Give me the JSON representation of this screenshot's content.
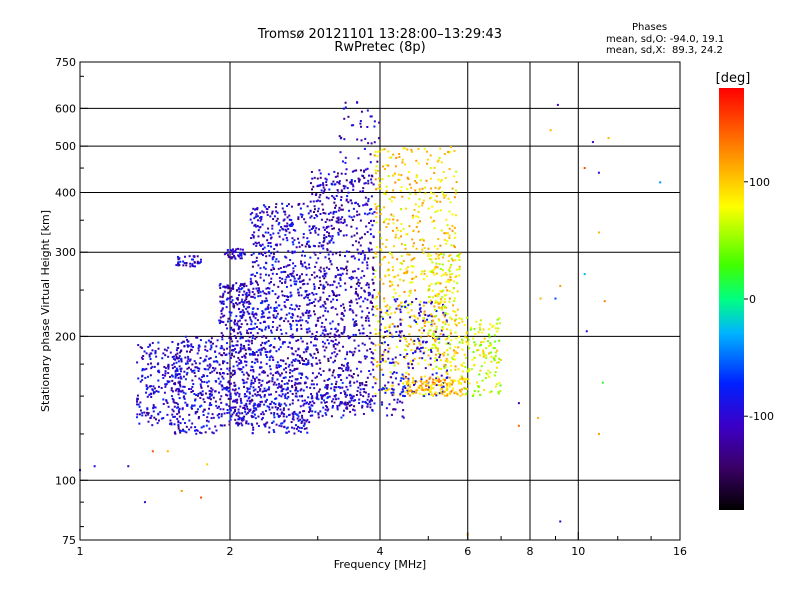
{
  "header": {
    "title_line1": "Tromsø 20121101 13:28:00–13:29:43",
    "title_line2": "RwPretec (8p)"
  },
  "stats": {
    "heading": "Phases",
    "line_o": "mean, sd,O: -94.0, 19.1",
    "line_x": "mean, sd,X:  89.3, 24.2"
  },
  "colorbar": {
    "unit_label": "[deg]",
    "range": [
      -180,
      180
    ],
    "ticks": [
      {
        "value": 100,
        "label": "100"
      },
      {
        "value": 0,
        "label": "0"
      },
      {
        "value": -100,
        "label": "-100"
      }
    ],
    "colormap": "rainbow (black-purple-blue-cyan-green-yellow-red)"
  },
  "chart_data": {
    "type": "scatter",
    "title": "Tromsø 20121101 13:28:00–13:29:43",
    "subtitle": "RwPretec (8p)",
    "xlabel": "Frequency [MHz]",
    "ylabel": "Stationary phase Virtual Height [km]",
    "x_scale": "log",
    "y_scale": "log",
    "xlim": [
      1,
      16
    ],
    "ylim": [
      75,
      750
    ],
    "xticks": [
      1,
      2,
      4,
      6,
      8,
      10,
      16
    ],
    "yticks": [
      75,
      100,
      200,
      300,
      400,
      500,
      600,
      750
    ],
    "x_gridlines": [
      2,
      4,
      6,
      8,
      10
    ],
    "y_gridlines": [
      100,
      200,
      300,
      400,
      500,
      600
    ],
    "color_variable": "phase [deg]",
    "clusters": [
      {
        "f": [
          1.3,
          1.6
        ],
        "h": [
          130,
          195
        ],
        "phase": -100,
        "n": 220
      },
      {
        "f": [
          1.55,
          1.9
        ],
        "h": [
          125,
          200
        ],
        "phase": -100,
        "n": 280
      },
      {
        "f": [
          1.55,
          1.75
        ],
        "h": [
          280,
          295
        ],
        "phase": -100,
        "n": 40
      },
      {
        "f": [
          1.9,
          2.2
        ],
        "h": [
          130,
          260
        ],
        "phase": -105,
        "n": 420
      },
      {
        "f": [
          1.95,
          2.15
        ],
        "h": [
          290,
          305
        ],
        "phase": -105,
        "n": 40
      },
      {
        "f": [
          2.2,
          2.9
        ],
        "h": [
          125,
          380
        ],
        "phase": -100,
        "n": 900
      },
      {
        "f": [
          2.9,
          3.9
        ],
        "h": [
          140,
          450
        ],
        "phase": -110,
        "n": 800
      },
      {
        "f": [
          3.3,
          4.0
        ],
        "h": [
          460,
          620
        ],
        "phase": -110,
        "n": 40
      },
      {
        "f": [
          3.9,
          5.7
        ],
        "h": [
          150,
          500
        ],
        "phase": 95,
        "n": 600
      },
      {
        "f": [
          4.0,
          5.5
        ],
        "h": [
          150,
          240
        ],
        "phase": -100,
        "n": 180
      },
      {
        "f": [
          5.0,
          5.8
        ],
        "h": [
          170,
          300
        ],
        "phase": 80,
        "n": 160
      },
      {
        "f": [
          4.5,
          6.0
        ],
        "h": [
          150,
          165
        ],
        "phase": 110,
        "n": 120
      },
      {
        "f": [
          5.8,
          7.0
        ],
        "h": [
          150,
          220
        ],
        "phase": 70,
        "n": 150
      },
      {
        "f": [
          2.0,
          4.5
        ],
        "h": [
          135,
          160
        ],
        "phase": -95,
        "n": 200
      }
    ],
    "isolated_points": [
      {
        "x": 1.0,
        "y": 105,
        "phase": -110
      },
      {
        "x": 1.07,
        "y": 107,
        "phase": -100
      },
      {
        "x": 1.25,
        "y": 107,
        "phase": -110
      },
      {
        "x": 1.35,
        "y": 90,
        "phase": -100
      },
      {
        "x": 1.4,
        "y": 115,
        "phase": 150
      },
      {
        "x": 1.5,
        "y": 115,
        "phase": 110
      },
      {
        "x": 1.6,
        "y": 95,
        "phase": 120
      },
      {
        "x": 1.75,
        "y": 92,
        "phase": 150
      },
      {
        "x": 1.8,
        "y": 108,
        "phase": 100
      },
      {
        "x": 6.0,
        "y": 77,
        "phase": 130
      },
      {
        "x": 9.2,
        "y": 82,
        "phase": -110
      },
      {
        "x": 9.1,
        "y": 610,
        "phase": -110
      },
      {
        "x": 8.8,
        "y": 540,
        "phase": 110
      },
      {
        "x": 10.3,
        "y": 450,
        "phase": 150
      },
      {
        "x": 11.0,
        "y": 440,
        "phase": -90
      },
      {
        "x": 10.7,
        "y": 510,
        "phase": -110
      },
      {
        "x": 11.5,
        "y": 520,
        "phase": 110
      },
      {
        "x": 14.6,
        "y": 420,
        "phase": -40
      },
      {
        "x": 11.0,
        "y": 330,
        "phase": 110
      },
      {
        "x": 10.3,
        "y": 270,
        "phase": -30
      },
      {
        "x": 9.0,
        "y": 240,
        "phase": -60
      },
      {
        "x": 10.4,
        "y": 205,
        "phase": -100
      },
      {
        "x": 11.2,
        "y": 160,
        "phase": 20
      },
      {
        "x": 11.0,
        "y": 125,
        "phase": 120
      },
      {
        "x": 8.4,
        "y": 240,
        "phase": 110
      },
      {
        "x": 7.6,
        "y": 145,
        "phase": -120
      },
      {
        "x": 7.6,
        "y": 130,
        "phase": 140
      },
      {
        "x": 8.3,
        "y": 135,
        "phase": 110
      },
      {
        "x": 9.2,
        "y": 255,
        "phase": 120
      },
      {
        "x": 11.3,
        "y": 237,
        "phase": 130
      }
    ]
  }
}
